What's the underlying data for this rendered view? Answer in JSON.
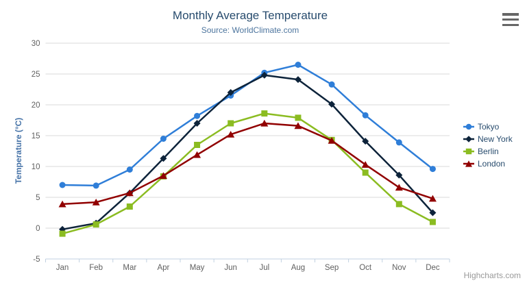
{
  "header": {
    "menu_icon": "hamburger-icon"
  },
  "credits": {
    "label": "Highcharts.com"
  },
  "palette": {
    "grid_color": "#d8d8d8",
    "axis_line_color": "#c0d0e0",
    "tick_label_color": "#606060",
    "title_color": "#274b6d",
    "subtitle_color": "#4d759e",
    "y_title_color": "#4572a7"
  },
  "chart_data": {
    "type": "line",
    "title": "Monthly Average Temperature",
    "subtitle": "Source: WorldClimate.com",
    "xlabel": "",
    "ylabel": "Temperature (°C)",
    "ylim": [
      -5,
      30
    ],
    "yticks": [
      30,
      25,
      20,
      15,
      10,
      5,
      0,
      -5
    ],
    "grid": true,
    "legend_position": "right",
    "categories": [
      "Jan",
      "Feb",
      "Mar",
      "Apr",
      "May",
      "Jun",
      "Jul",
      "Aug",
      "Sep",
      "Oct",
      "Nov",
      "Dec"
    ],
    "series": [
      {
        "name": "Tokyo",
        "color": "#2f7ed8",
        "marker": "circle",
        "values": [
          7.0,
          6.9,
          9.5,
          14.5,
          18.2,
          21.5,
          25.2,
          26.5,
          23.3,
          18.3,
          13.9,
          9.6
        ]
      },
      {
        "name": "New York",
        "color": "#0d233a",
        "marker": "diamond",
        "values": [
          -0.2,
          0.8,
          5.7,
          11.3,
          17.0,
          22.0,
          24.8,
          24.1,
          20.1,
          14.1,
          8.6,
          2.5
        ]
      },
      {
        "name": "Berlin",
        "color": "#8bbc21",
        "marker": "square",
        "values": [
          -0.9,
          0.6,
          3.5,
          8.4,
          13.5,
          17.0,
          18.6,
          17.9,
          14.3,
          9.0,
          3.9,
          1.0
        ]
      },
      {
        "name": "London",
        "color": "#910000",
        "marker": "triangle",
        "values": [
          3.9,
          4.2,
          5.7,
          8.5,
          11.9,
          15.2,
          17.0,
          16.6,
          14.2,
          10.3,
          6.6,
          4.8
        ]
      }
    ]
  }
}
